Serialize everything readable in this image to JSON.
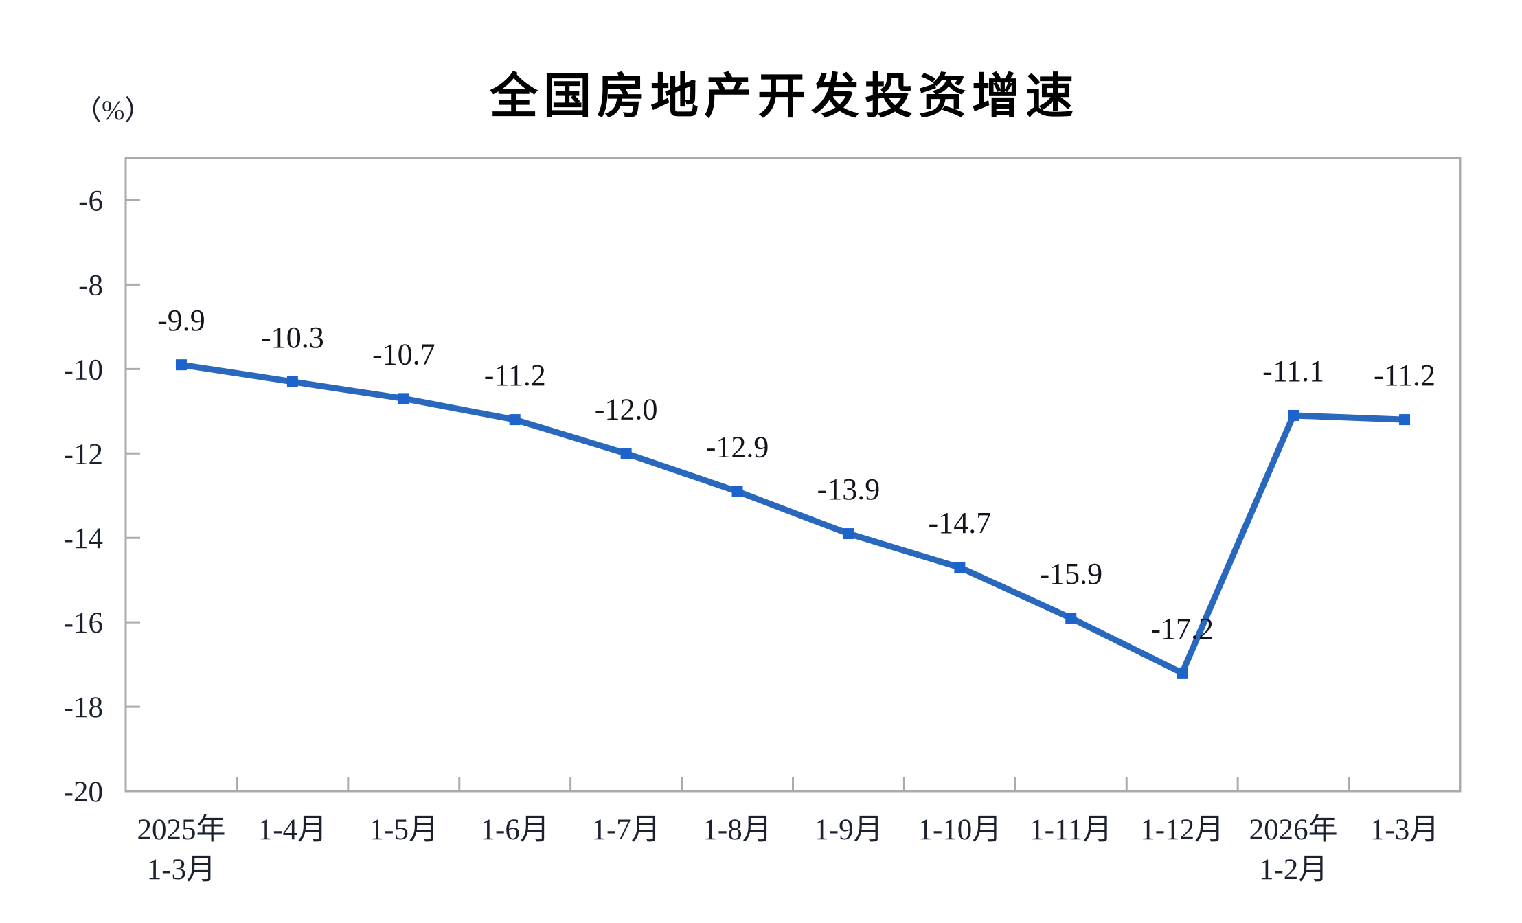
{
  "title": "全国房地产开发投资增速",
  "unit_label": "（%）",
  "colors": {
    "line": "#2A68BE",
    "marker": "#1C63CC",
    "axis": "#ABABAB",
    "tick_label": "#1C2130",
    "data_label": "#14141C",
    "title": "#000000",
    "background": "#FFFFFF"
  },
  "chart_data": {
    "type": "line",
    "title": "全国房地产开发投资增速",
    "unit": "（%）",
    "categories": [
      [
        "2025年",
        "1-3月"
      ],
      [
        "1-4月"
      ],
      [
        "1-5月"
      ],
      [
        "1-6月"
      ],
      [
        "1-7月"
      ],
      [
        "1-8月"
      ],
      [
        "1-9月"
      ],
      [
        "1-10月"
      ],
      [
        "1-11月"
      ],
      [
        "1-12月"
      ],
      [
        "2026年",
        "1-2月"
      ],
      [
        "1-3月"
      ]
    ],
    "values": [
      -9.9,
      -10.3,
      -10.7,
      -11.2,
      -12.0,
      -12.9,
      -13.9,
      -14.7,
      -15.9,
      -17.2,
      -11.1,
      -11.2
    ],
    "data_labels": [
      "-9.9",
      "-10.3",
      "-10.7",
      "-11.2",
      "-12.0",
      "-12.9",
      "-13.9",
      "-14.7",
      "-15.9",
      "-17.2",
      "-11.1",
      "-11.2"
    ],
    "xlabel": "",
    "ylabel": "（%）",
    "ylim": [
      -20,
      -5
    ],
    "yticks": [
      -20,
      -18,
      -16,
      -14,
      -12,
      -10,
      -8,
      -6
    ],
    "grid": false,
    "legend": "none",
    "marker_shape": "square"
  }
}
